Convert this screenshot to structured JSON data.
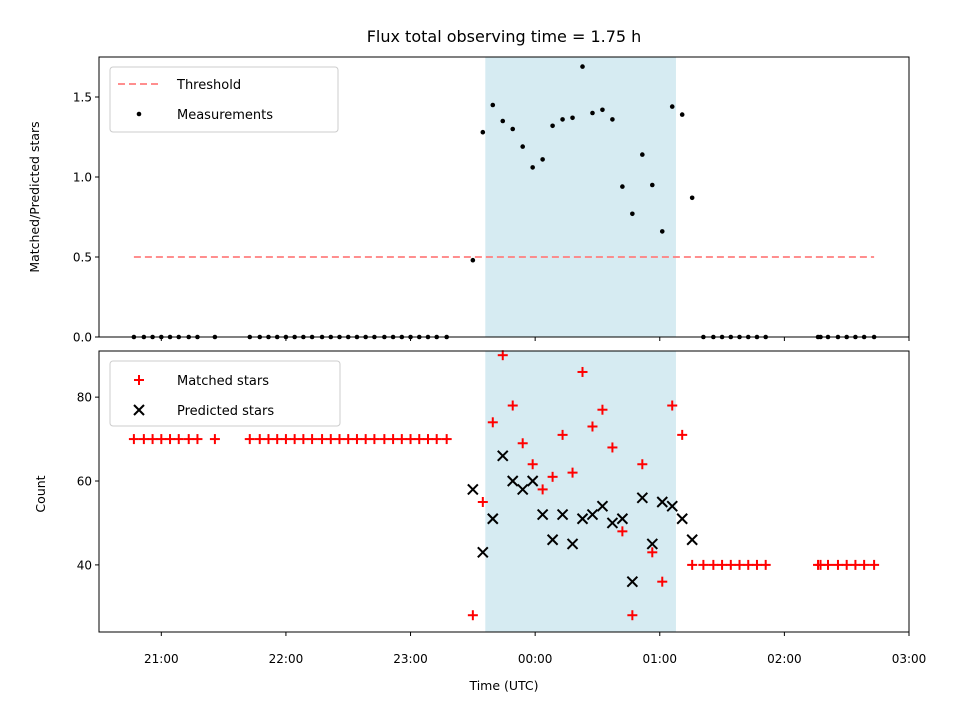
{
  "chart_data": [
    {
      "type": "scatter",
      "title": "Flux total observing time = 1.75 h",
      "xlabel": "",
      "ylabel": "Matched/Predicted stars",
      "ylim": [
        0,
        1.75
      ],
      "yticks": [
        "0.0",
        "0.5",
        "1.0",
        "1.5"
      ],
      "x_axis_unit": "hours since 21:00 UTC",
      "shaded_region": [
        2.6,
        4.13
      ],
      "shaded_color": "#add8e6",
      "legend_position": "top-left",
      "threshold": {
        "name": "Threshold",
        "value": 0.5,
        "x_range": [
          -0.22,
          5.72
        ],
        "color": "#ff7f7f"
      },
      "series": [
        {
          "name": "Measurements",
          "color": "#000000",
          "marker": "dot",
          "points": [
            [
              -0.22,
              0
            ],
            [
              -0.14,
              0
            ],
            [
              -0.07,
              0
            ],
            [
              0.0,
              0
            ],
            [
              0.07,
              0
            ],
            [
              0.14,
              0
            ],
            [
              0.22,
              0
            ],
            [
              0.29,
              0
            ],
            [
              0.43,
              0
            ],
            [
              0.71,
              0
            ],
            [
              0.79,
              0
            ],
            [
              0.86,
              0
            ],
            [
              0.93,
              0
            ],
            [
              1.0,
              0
            ],
            [
              1.07,
              0
            ],
            [
              1.14,
              0
            ],
            [
              1.21,
              0
            ],
            [
              1.29,
              0
            ],
            [
              1.36,
              0
            ],
            [
              1.43,
              0
            ],
            [
              1.5,
              0
            ],
            [
              1.57,
              0
            ],
            [
              1.64,
              0
            ],
            [
              1.71,
              0
            ],
            [
              1.79,
              0
            ],
            [
              1.86,
              0
            ],
            [
              1.93,
              0
            ],
            [
              2.0,
              0
            ],
            [
              2.07,
              0
            ],
            [
              2.14,
              0
            ],
            [
              2.21,
              0
            ],
            [
              2.29,
              0
            ],
            [
              2.5,
              0.48
            ],
            [
              2.58,
              1.28
            ],
            [
              2.66,
              1.45
            ],
            [
              2.74,
              1.35
            ],
            [
              2.82,
              1.3
            ],
            [
              2.9,
              1.19
            ],
            [
              2.98,
              1.06
            ],
            [
              3.06,
              1.11
            ],
            [
              3.14,
              1.32
            ],
            [
              3.22,
              1.36
            ],
            [
              3.3,
              1.37
            ],
            [
              3.38,
              1.69
            ],
            [
              3.46,
              1.4
            ],
            [
              3.54,
              1.42
            ],
            [
              3.62,
              1.36
            ],
            [
              3.7,
              0.94
            ],
            [
              3.78,
              0.77
            ],
            [
              3.86,
              1.14
            ],
            [
              3.94,
              0.95
            ],
            [
              4.02,
              0.66
            ],
            [
              4.1,
              1.44
            ],
            [
              4.18,
              1.39
            ],
            [
              4.26,
              0.87
            ],
            [
              4.35,
              0
            ],
            [
              4.43,
              0
            ],
            [
              4.5,
              0
            ],
            [
              4.57,
              0
            ],
            [
              4.64,
              0
            ],
            [
              4.71,
              0
            ],
            [
              4.78,
              0
            ],
            [
              4.85,
              0
            ],
            [
              5.27,
              0
            ],
            [
              5.29,
              0
            ],
            [
              5.35,
              0
            ],
            [
              5.43,
              0
            ],
            [
              5.5,
              0
            ],
            [
              5.57,
              0
            ],
            [
              5.64,
              0
            ],
            [
              5.72,
              0
            ]
          ]
        }
      ]
    },
    {
      "type": "scatter",
      "title": "",
      "xlabel": "Time (UTC)",
      "ylabel": "Count",
      "ylim": [
        24,
        91
      ],
      "yticks": [
        "40",
        "60",
        "80"
      ],
      "xlim": [
        -0.5,
        6.0
      ],
      "xticks": [
        "21:00",
        "22:00",
        "23:00",
        "00:00",
        "01:00",
        "02:00",
        "03:00"
      ],
      "x_axis_unit": "hours since 21:00 UTC",
      "shaded_region": [
        2.6,
        4.13
      ],
      "shaded_color": "#add8e6",
      "legend_position": "top-left",
      "series": [
        {
          "name": "Matched stars",
          "color": "#ff0000",
          "marker": "plus",
          "points": [
            [
              -0.22,
              70
            ],
            [
              -0.14,
              70
            ],
            [
              -0.07,
              70
            ],
            [
              0.0,
              70
            ],
            [
              0.07,
              70
            ],
            [
              0.14,
              70
            ],
            [
              0.22,
              70
            ],
            [
              0.29,
              70
            ],
            [
              0.43,
              70
            ],
            [
              0.71,
              70
            ],
            [
              0.79,
              70
            ],
            [
              0.86,
              70
            ],
            [
              0.93,
              70
            ],
            [
              1.0,
              70
            ],
            [
              1.07,
              70
            ],
            [
              1.14,
              70
            ],
            [
              1.21,
              70
            ],
            [
              1.29,
              70
            ],
            [
              1.36,
              70
            ],
            [
              1.43,
              70
            ],
            [
              1.5,
              70
            ],
            [
              1.57,
              70
            ],
            [
              1.64,
              70
            ],
            [
              1.71,
              70
            ],
            [
              1.79,
              70
            ],
            [
              1.86,
              70
            ],
            [
              1.93,
              70
            ],
            [
              2.0,
              70
            ],
            [
              2.07,
              70
            ],
            [
              2.14,
              70
            ],
            [
              2.21,
              70
            ],
            [
              2.29,
              70
            ],
            [
              2.5,
              28
            ],
            [
              2.58,
              55
            ],
            [
              2.66,
              74
            ],
            [
              2.74,
              90
            ],
            [
              2.82,
              78
            ],
            [
              2.9,
              69
            ],
            [
              2.98,
              64
            ],
            [
              3.06,
              58
            ],
            [
              3.14,
              61
            ],
            [
              3.22,
              71
            ],
            [
              3.3,
              62
            ],
            [
              3.38,
              86
            ],
            [
              3.46,
              73
            ],
            [
              3.54,
              77
            ],
            [
              3.62,
              68
            ],
            [
              3.7,
              48
            ],
            [
              3.78,
              28
            ],
            [
              3.86,
              64
            ],
            [
              3.94,
              43
            ],
            [
              4.02,
              36
            ],
            [
              4.1,
              78
            ],
            [
              4.18,
              71
            ],
            [
              4.26,
              40
            ],
            [
              4.35,
              40
            ],
            [
              4.43,
              40
            ],
            [
              4.5,
              40
            ],
            [
              4.57,
              40
            ],
            [
              4.64,
              40
            ],
            [
              4.71,
              40
            ],
            [
              4.78,
              40
            ],
            [
              4.85,
              40
            ],
            [
              5.27,
              40
            ],
            [
              5.29,
              40
            ],
            [
              5.35,
              40
            ],
            [
              5.43,
              40
            ],
            [
              5.5,
              40
            ],
            [
              5.57,
              40
            ],
            [
              5.64,
              40
            ],
            [
              5.72,
              40
            ]
          ]
        },
        {
          "name": "Predicted stars",
          "color": "#000000",
          "marker": "x",
          "points": [
            [
              2.5,
              58
            ],
            [
              2.58,
              43
            ],
            [
              2.66,
              51
            ],
            [
              2.74,
              66
            ],
            [
              2.82,
              60
            ],
            [
              2.9,
              58
            ],
            [
              2.98,
              60
            ],
            [
              3.06,
              52
            ],
            [
              3.14,
              46
            ],
            [
              3.22,
              52
            ],
            [
              3.3,
              45
            ],
            [
              3.38,
              51
            ],
            [
              3.46,
              52
            ],
            [
              3.54,
              54
            ],
            [
              3.62,
              50
            ],
            [
              3.7,
              51
            ],
            [
              3.78,
              36
            ],
            [
              3.86,
              56
            ],
            [
              3.94,
              45
            ],
            [
              4.02,
              55
            ],
            [
              4.1,
              54
            ],
            [
              4.18,
              51
            ],
            [
              4.26,
              46
            ]
          ]
        }
      ]
    }
  ]
}
